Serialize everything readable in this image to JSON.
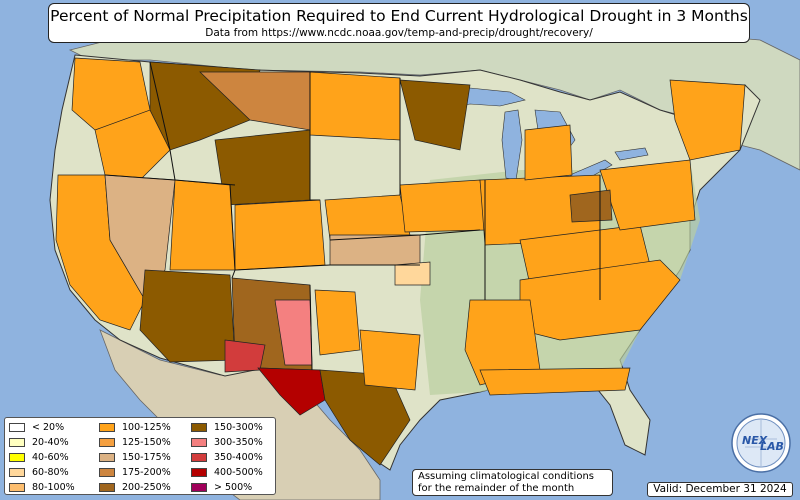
{
  "title": "Percent of Normal Precipitation Required to End Current Hydrological Drought in 3 Months",
  "subtitle": "Data from https://www.ncdc.noaa.gov/temp-and-precip/drought/recovery/",
  "legend": [
    {
      "label": "< 20%",
      "color": "#ffffff"
    },
    {
      "label": "20-40%",
      "color": "#ffffc0"
    },
    {
      "label": "40-60%",
      "color": "#ffff00"
    },
    {
      "label": "60-80%",
      "color": "#ffd79b"
    },
    {
      "label": "80-100%",
      "color": "#fdbe6f"
    },
    {
      "label": "100-125%",
      "color": "#ffa31a"
    },
    {
      "label": "125-150%",
      "color": "#f5a040"
    },
    {
      "label": "150-175%",
      "color": "#dcb284"
    },
    {
      "label": "175-200%",
      "color": "#cd853f"
    },
    {
      "label": "200-250%",
      "color": "#a0661e"
    },
    {
      "label": "150-300%",
      "color": "#8c5a00"
    },
    {
      "label": "300-350%",
      "color": "#f48080"
    },
    {
      "label": "350-400%",
      "color": "#d23c3c"
    },
    {
      "label": "400-500%",
      "color": "#b40000"
    },
    {
      "label": "> 500%",
      "color": "#a0005a"
    }
  ],
  "note": {
    "line1": "Assuming climatological conditions",
    "line2": "for the remainder of the month"
  },
  "valid": "Valid: December 31 2024",
  "logo": {
    "text_top": "NEX",
    "text_bottom": "LAB"
  },
  "colors": {
    "ocean": "#8fb3df",
    "land": "#dfe3c8",
    "land_green": "#b9cfa0",
    "mexico": "#d8cfb4",
    "canada": "#cfd9c0",
    "lakes": "#8fb3df",
    "border": "#000000"
  }
}
